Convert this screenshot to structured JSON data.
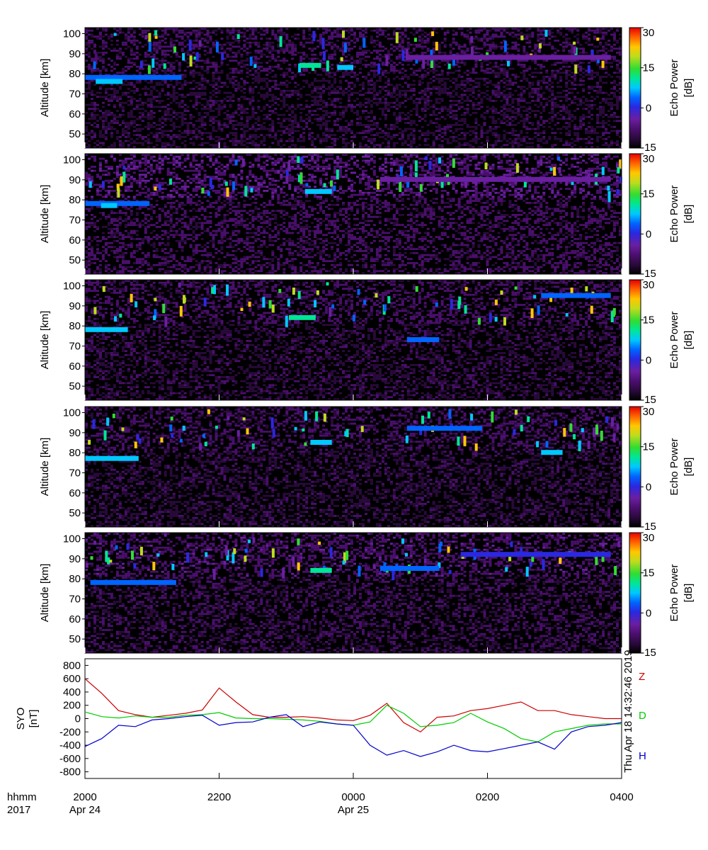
{
  "chart_data": [
    {
      "type": "heatmap",
      "panel": 1,
      "ylabel": "Altitude [km]",
      "y_ticks": [
        "100",
        "90",
        "80",
        "70",
        "60",
        "50"
      ],
      "colorbar_label": "Echo Power [dB]",
      "colorbar_ticks": [
        "30",
        "15",
        "0",
        "-15"
      ],
      "colorbar_range": [
        -15,
        30
      ],
      "ylim": [
        43,
        103
      ],
      "background_db": -13,
      "features": [
        {
          "t_start": 0.0,
          "t_end": 0.18,
          "alt": 78,
          "db": 2
        },
        {
          "t_start": 0.02,
          "t_end": 0.07,
          "alt": 76,
          "db": 8
        },
        {
          "t_start": 0.4,
          "t_end": 0.44,
          "alt": 84,
          "db": 10
        },
        {
          "t_start": 0.47,
          "t_end": 0.5,
          "alt": 83,
          "db": 6
        },
        {
          "t_start": 0.6,
          "t_end": 0.98,
          "alt": 88,
          "db": -4
        }
      ]
    },
    {
      "type": "heatmap",
      "panel": 2,
      "ylabel": "Altitude [km]",
      "y_ticks": [
        "100",
        "90",
        "80",
        "70",
        "60",
        "50"
      ],
      "colorbar_label": "Echo Power [dB]",
      "colorbar_ticks": [
        "30",
        "15",
        "0",
        "-15"
      ],
      "colorbar_range": [
        -15,
        30
      ],
      "ylim": [
        43,
        103
      ],
      "background_db": -11,
      "features": [
        {
          "t_start": 0.0,
          "t_end": 0.12,
          "alt": 78,
          "db": 2
        },
        {
          "t_start": 0.03,
          "t_end": 0.06,
          "alt": 77,
          "db": 8
        },
        {
          "t_start": 0.41,
          "t_end": 0.46,
          "alt": 84,
          "db": 8
        },
        {
          "t_start": 0.55,
          "t_end": 0.98,
          "alt": 90,
          "db": -3
        }
      ]
    },
    {
      "type": "heatmap",
      "panel": 3,
      "ylabel": "Altitude [km]",
      "y_ticks": [
        "100",
        "90",
        "80",
        "70",
        "60",
        "50"
      ],
      "colorbar_label": "Echo Power [dB]",
      "colorbar_ticks": [
        "30",
        "15",
        "0",
        "-15"
      ],
      "colorbar_range": [
        -15,
        30
      ],
      "ylim": [
        43,
        103
      ],
      "background_db": -13,
      "features": [
        {
          "t_start": 0.0,
          "t_end": 0.08,
          "alt": 78,
          "db": 6
        },
        {
          "t_start": 0.38,
          "t_end": 0.43,
          "alt": 84,
          "db": 10
        },
        {
          "t_start": 0.6,
          "t_end": 0.66,
          "alt": 73,
          "db": 4
        },
        {
          "t_start": 0.85,
          "t_end": 0.98,
          "alt": 95,
          "db": 5
        }
      ]
    },
    {
      "type": "heatmap",
      "panel": 4,
      "ylabel": "Altitude [km]",
      "y_ticks": [
        "100",
        "90",
        "80",
        "70",
        "60",
        "50"
      ],
      "colorbar_label": "Echo Power [dB]",
      "colorbar_ticks": [
        "30",
        "15",
        "0",
        "-15"
      ],
      "colorbar_range": [
        -15,
        30
      ],
      "ylim": [
        43,
        103
      ],
      "background_db": -13,
      "features": [
        {
          "t_start": 0.0,
          "t_end": 0.1,
          "alt": 77,
          "db": 6
        },
        {
          "t_start": 0.42,
          "t_end": 0.46,
          "alt": 85,
          "db": 6
        },
        {
          "t_start": 0.6,
          "t_end": 0.74,
          "alt": 92,
          "db": 2
        },
        {
          "t_start": 0.85,
          "t_end": 0.89,
          "alt": 80,
          "db": 6
        }
      ]
    },
    {
      "type": "heatmap",
      "panel": 5,
      "ylabel": "Altitude [km]",
      "y_ticks": [
        "100",
        "90",
        "80",
        "70",
        "60",
        "50"
      ],
      "colorbar_label": "Echo Power [dB]",
      "colorbar_ticks": [
        "30",
        "15",
        "0",
        "-15"
      ],
      "colorbar_range": [
        -15,
        30
      ],
      "ylim": [
        43,
        103
      ],
      "background_db": -12,
      "features": [
        {
          "t_start": 0.01,
          "t_end": 0.17,
          "alt": 78,
          "db": 4
        },
        {
          "t_start": 0.42,
          "t_end": 0.46,
          "alt": 84,
          "db": 12
        },
        {
          "t_start": 0.55,
          "t_end": 0.66,
          "alt": 85,
          "db": 2
        },
        {
          "t_start": 0.7,
          "t_end": 0.98,
          "alt": 92,
          "db": 0
        }
      ]
    },
    {
      "type": "line",
      "panel": 6,
      "ylabel": "SYO [nT]",
      "y_ticks": [
        "800",
        "600",
        "400",
        "200",
        "0",
        "-200",
        "-400",
        "-600",
        "-800"
      ],
      "ylim": [
        -900,
        900
      ],
      "x_hours": [
        0,
        0.25,
        0.5,
        0.75,
        1,
        1.25,
        1.5,
        1.75,
        2,
        2.25,
        2.5,
        2.75,
        3,
        3.25,
        3.5,
        3.75,
        4,
        4.25,
        4.5,
        4.75,
        5,
        5.25,
        5.5,
        5.75,
        6,
        6.25,
        6.5,
        6.75,
        7,
        7.25,
        7.5,
        7.75,
        8
      ],
      "series": [
        {
          "name": "Z",
          "color": "#cc0000",
          "values": [
            600,
            380,
            120,
            60,
            20,
            50,
            80,
            130,
            460,
            250,
            60,
            20,
            20,
            30,
            10,
            -20,
            -30,
            50,
            230,
            -60,
            -200,
            20,
            40,
            120,
            150,
            200,
            250,
            120,
            120,
            60,
            30,
            0,
            0
          ]
        },
        {
          "name": "D",
          "color": "#00cc00",
          "values": [
            100,
            30,
            10,
            40,
            20,
            20,
            50,
            60,
            90,
            10,
            0,
            0,
            -10,
            -20,
            -40,
            -80,
            -100,
            -50,
            200,
            80,
            -120,
            -100,
            -60,
            80,
            -50,
            -150,
            -300,
            -350,
            -200,
            -150,
            -100,
            -80,
            -80
          ]
        },
        {
          "name": "H",
          "color": "#0000cc",
          "values": [
            -420,
            -300,
            -100,
            -120,
            -20,
            0,
            30,
            50,
            -100,
            -60,
            -50,
            20,
            60,
            -120,
            -50,
            -80,
            -100,
            -400,
            -550,
            -480,
            -570,
            -500,
            -400,
            -480,
            -500,
            -450,
            -400,
            -350,
            -460,
            -200,
            -120,
            -100,
            -60
          ]
        }
      ]
    }
  ],
  "x_axis": {
    "row1_label": "hhmm",
    "row2_label": "2017",
    "ticks": [
      {
        "time": "2000",
        "date": "Apr 24",
        "hour": 0
      },
      {
        "time": "2200",
        "date": "",
        "hour": 2
      },
      {
        "time": "0000",
        "date": "Apr 25",
        "hour": 4
      },
      {
        "time": "0200",
        "date": "",
        "hour": 6
      },
      {
        "time": "0400",
        "date": "",
        "hour": 8
      }
    ],
    "total_hours": 8
  },
  "timestamp": "Thu Apr 18 14:32:46 2019",
  "colormap": [
    "#000000",
    "#2a0a3c",
    "#4b0f6e",
    "#6a1fa0",
    "#2a28e0",
    "#0064ff",
    "#00c8ff",
    "#00e696",
    "#32dc32",
    "#bedc1e",
    "#ffc800",
    "#ff6400",
    "#e60000"
  ]
}
